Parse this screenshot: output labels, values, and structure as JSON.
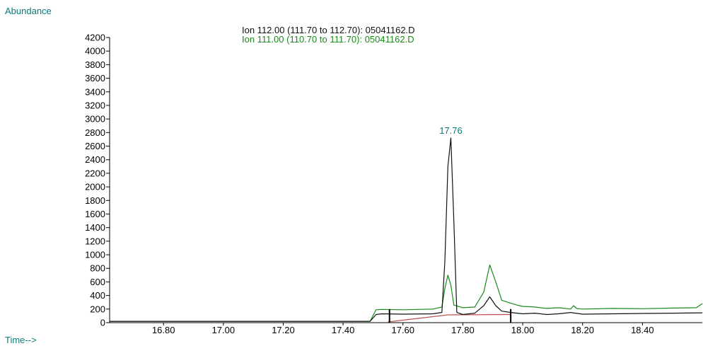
{
  "chart_data": {
    "type": "line",
    "ylabel": "Abundance",
    "xlabel": "Time-->",
    "legend": [
      {
        "text": "Ion 112.00 (111.70 to 112.70): 05041162.D",
        "color": "#111111"
      },
      {
        "text": "Ion 111.00 (110.70 to 111.70): 05041162.D",
        "color": "#1a8a1a"
      }
    ],
    "xlim": [
      16.62,
      18.6
    ],
    "ylim": [
      0,
      4200
    ],
    "xticks": [
      16.8,
      17.0,
      17.2,
      17.4,
      17.6,
      17.8,
      18.0,
      18.2,
      18.4
    ],
    "xtick_labels": [
      "16.80",
      "17.00",
      "17.20",
      "17.40",
      "17.60",
      "17.80",
      "18.00",
      "18.20",
      "18.40"
    ],
    "yticks": [
      0,
      200,
      400,
      600,
      800,
      1000,
      1200,
      1400,
      1600,
      1800,
      2000,
      2200,
      2400,
      2600,
      2800,
      3000,
      3200,
      3400,
      3600,
      3800,
      4000,
      4200
    ],
    "ytick_labels": [
      "0",
      "200",
      "400",
      "600",
      "800",
      "1000",
      "1200",
      "1400",
      "1600",
      "1800",
      "2000",
      "2200",
      "2400",
      "2600",
      "2800",
      "3000",
      "3200",
      "3400",
      "3600",
      "3800",
      "4000",
      "4200"
    ],
    "series": [
      {
        "name": "Ion 112.00 (111.70 to 112.70): 05041162.D",
        "color": "#111111",
        "x": [
          16.62,
          17.49,
          17.51,
          17.53,
          17.6,
          17.7,
          17.73,
          17.74,
          17.75,
          17.76,
          17.77,
          17.78,
          17.8,
          17.84,
          17.87,
          17.89,
          17.91,
          17.93,
          17.96,
          18.0,
          18.04,
          18.08,
          18.12,
          18.16,
          18.2,
          18.3,
          18.4,
          18.5,
          18.6
        ],
        "y": [
          20,
          20,
          120,
          130,
          125,
          130,
          150,
          900,
          2300,
          2720,
          1500,
          150,
          120,
          140,
          250,
          380,
          250,
          170,
          150,
          130,
          140,
          120,
          130,
          150,
          125,
          130,
          135,
          140,
          145
        ]
      },
      {
        "name": "Ion 111.00 (110.70 to 111.70): 05041162.D",
        "color": "#1a8a1a",
        "x": [
          16.62,
          17.49,
          17.51,
          17.53,
          17.6,
          17.7,
          17.73,
          17.74,
          17.75,
          17.76,
          17.77,
          17.8,
          17.84,
          17.87,
          17.89,
          17.91,
          17.93,
          17.95,
          17.98,
          18.0,
          18.04,
          18.08,
          18.12,
          18.16,
          18.17,
          18.18,
          18.2,
          18.3,
          18.4,
          18.5,
          18.58,
          18.6
        ],
        "y": [
          20,
          20,
          190,
          195,
          190,
          200,
          230,
          500,
          700,
          550,
          260,
          220,
          230,
          450,
          850,
          600,
          330,
          300,
          260,
          240,
          230,
          210,
          220,
          200,
          250,
          210,
          200,
          210,
          205,
          215,
          220,
          280
        ]
      },
      {
        "name": "",
        "color": "#c0504d",
        "x": [
          17.55,
          17.75,
          17.96
        ],
        "y": [
          10,
          115,
          120
        ]
      }
    ],
    "peak_labels": [
      {
        "text": "17.76",
        "x": 17.76,
        "y": 2720,
        "color": "#0a7a7a"
      }
    ],
    "integration_markers": [
      17.555,
      17.96
    ]
  }
}
